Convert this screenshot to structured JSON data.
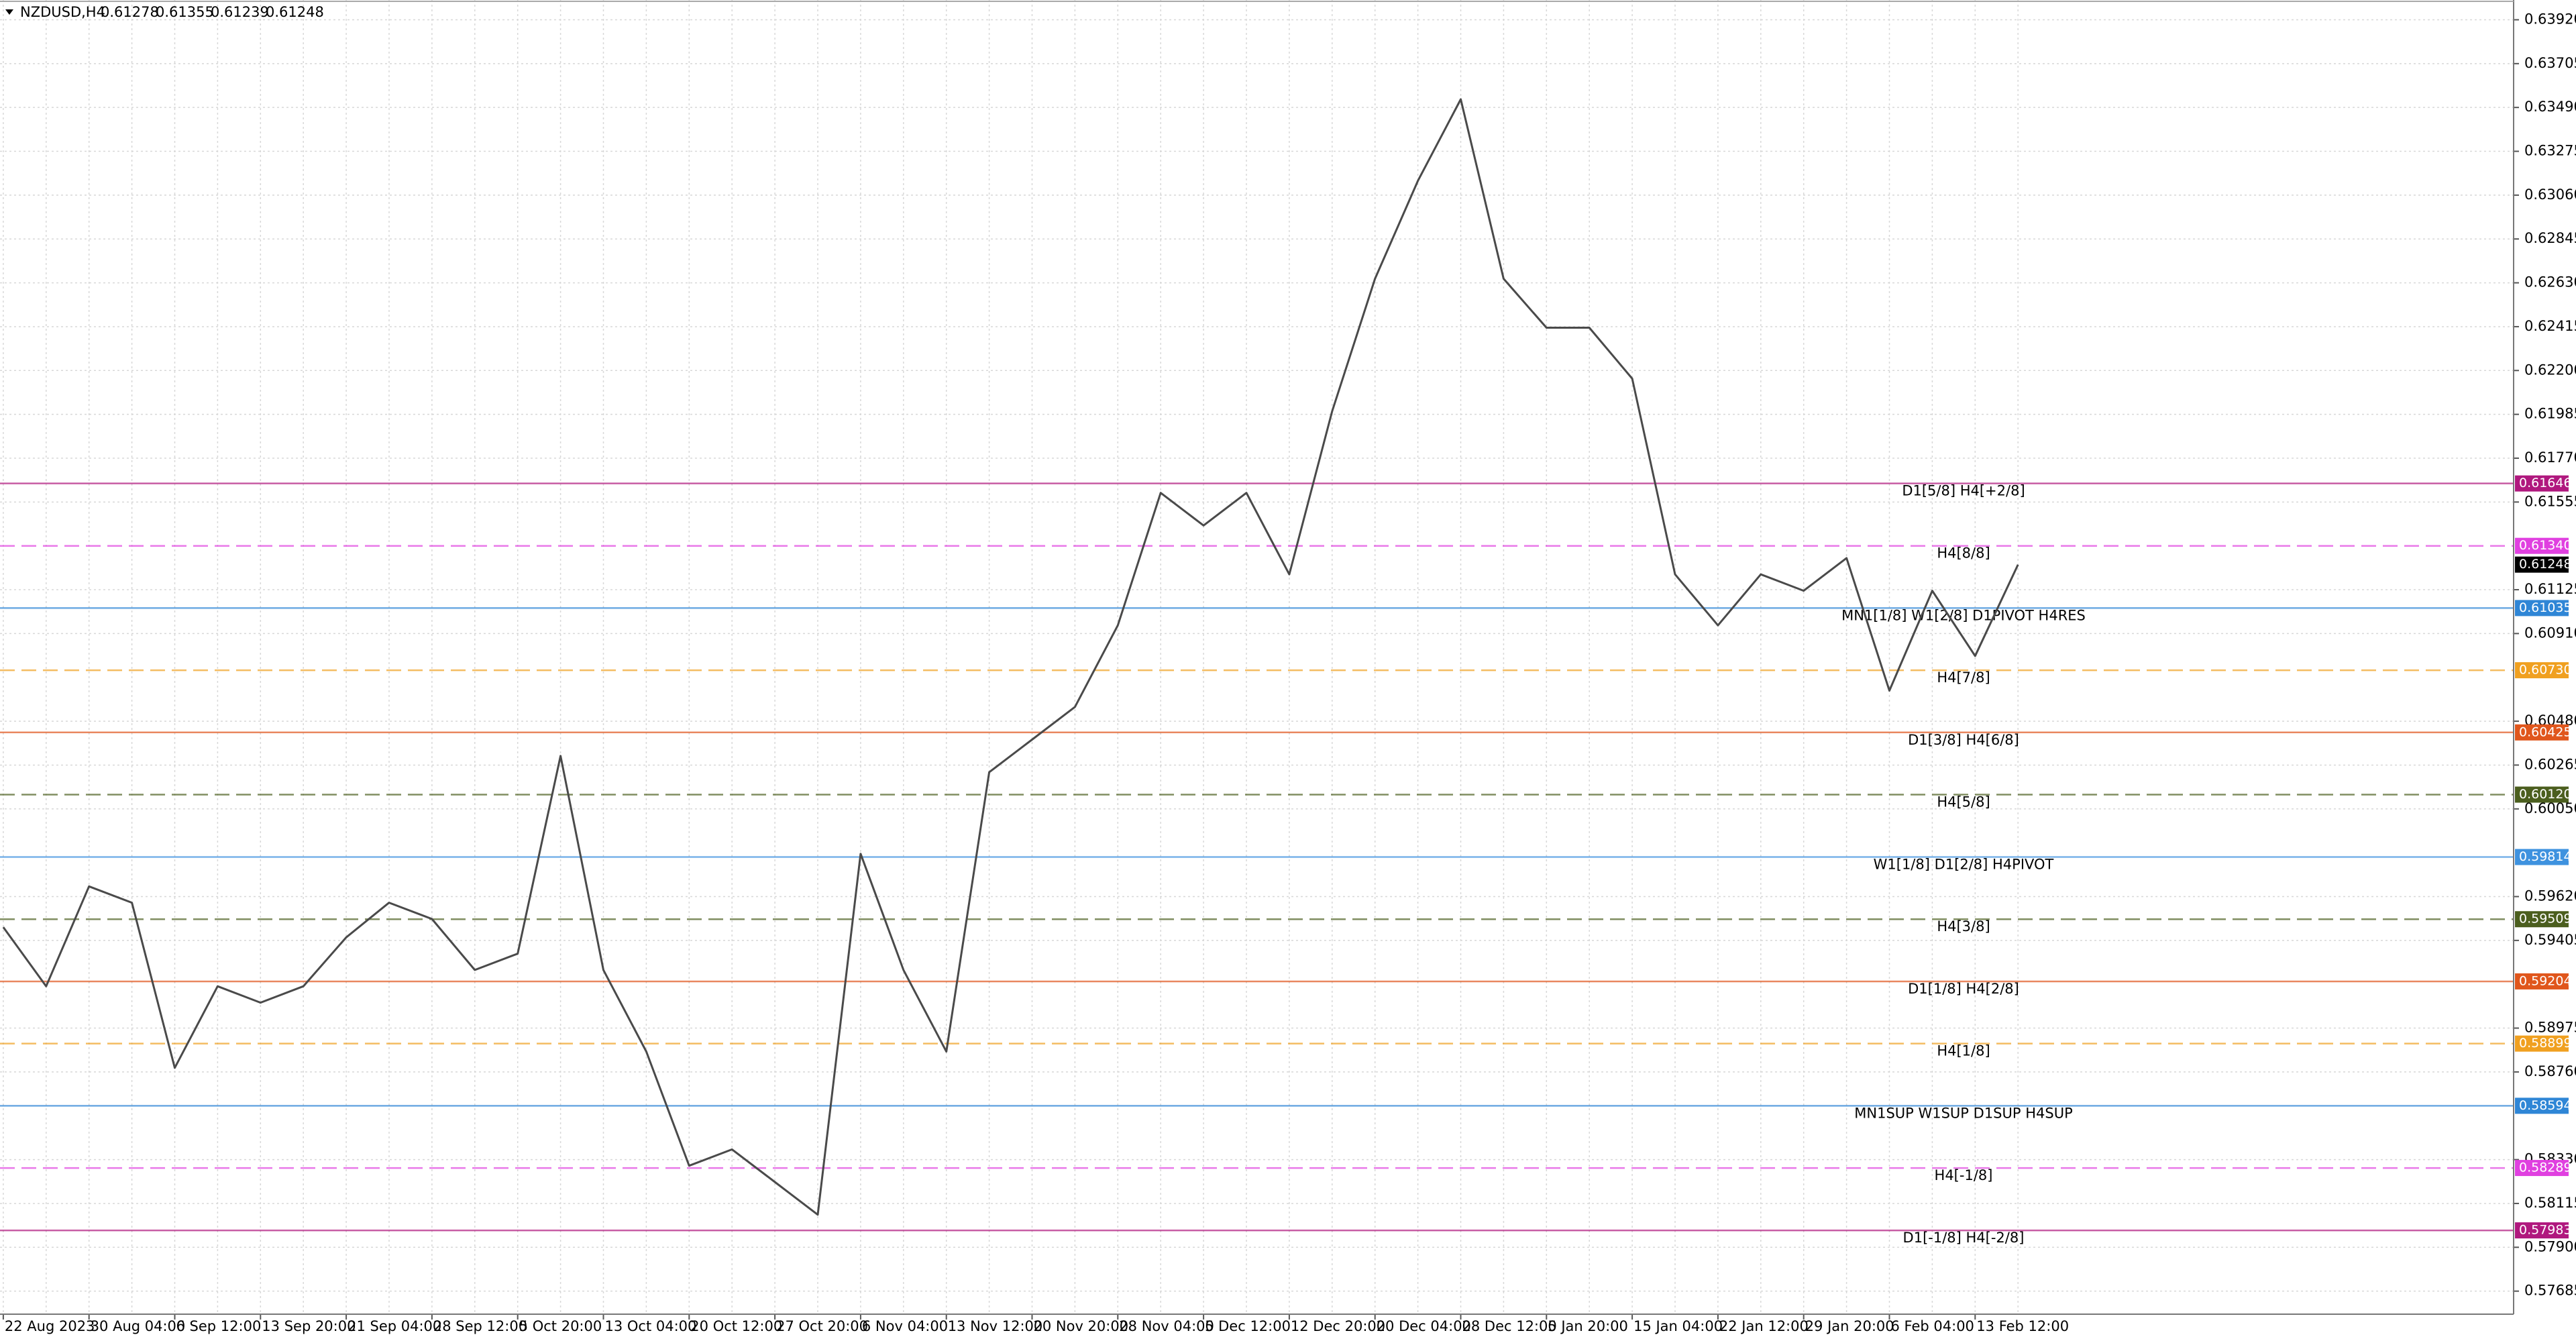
{
  "header": {
    "symbol": "NZDUSD,H4",
    "open": 0.61278,
    "high": 0.61355,
    "low": 0.61239,
    "close": 0.61248
  },
  "chart_data": {
    "type": "line",
    "categories": [
      "22 Aug 2023",
      null,
      "30 Aug 04:00",
      null,
      "6 Sep 12:00",
      null,
      "13 Sep 20:00",
      null,
      "21 Sep 04:00",
      null,
      "28 Sep 12:00",
      null,
      "5 Oct 20:00",
      null,
      "13 Oct 04:00",
      null,
      "20 Oct 12:00",
      null,
      "27 Oct 20:00",
      null,
      "6 Nov 04:00",
      null,
      "13 Nov 12:00",
      null,
      "20 Nov 20:00",
      null,
      "28 Nov 04:00",
      null,
      "5 Dec 12:00",
      null,
      "12 Dec 20:00",
      null,
      "20 Dec 04:00",
      null,
      "28 Dec 12:00",
      null,
      "5 Jan 20:00",
      null,
      "15 Jan 04:00",
      null,
      "22 Jan 12:00",
      null,
      "29 Jan 20:00",
      null,
      "6 Feb 04:00",
      null,
      "13 Feb 12:00",
      null
    ],
    "series": [
      {
        "name": "NZDUSD",
        "color": "#4a4a4a",
        "values": [
          0.5947,
          0.5918,
          0.5967,
          0.5959,
          0.5878,
          0.5918,
          0.591,
          0.5918,
          0.5942,
          0.5959,
          0.5951,
          0.5926,
          0.5934,
          0.6031,
          0.5926,
          0.5886,
          0.583,
          0.5838,
          0.5822,
          0.5806,
          0.5983,
          0.5926,
          0.5886,
          0.6023,
          0.6039,
          0.6055,
          0.6095,
          0.616,
          0.6144,
          0.616,
          0.612,
          0.62,
          0.6265,
          0.6313,
          0.6353,
          0.6265,
          0.6241,
          0.6241,
          0.6216,
          0.612,
          0.6095,
          0.612,
          0.6112,
          0.6128,
          0.6063,
          0.6112,
          0.608,
          0.61248
        ]
      }
    ],
    "ylim": [
      0.57572,
      0.64017
    ],
    "yticks": [
      {
        "value": 0.6392,
        "label": "0.63920"
      },
      0.63705,
      {
        "value": 0.6349,
        "label": "0.63490"
      },
      0.63275,
      {
        "value": 0.6306,
        "label": "0.63060"
      },
      0.62845,
      {
        "value": 0.6263,
        "label": "0.62630"
      },
      0.62415,
      {
        "value": 0.622,
        "label": "0.62200"
      },
      0.61985,
      {
        "value": 0.6177,
        "label": "0.61770"
      },
      0.61555,
      0.61125,
      {
        "value": 0.6091,
        "label": "0.60910"
      },
      {
        "value": 0.6048,
        "label": "0.60480"
      },
      0.60265,
      {
        "value": 0.6005,
        "label": "0.60050"
      },
      {
        "value": 0.5962,
        "label": "0.59620"
      },
      0.59405,
      0.58975,
      {
        "value": 0.5876,
        "label": "0.58760"
      },
      {
        "value": 0.5833,
        "label": "0.58330"
      },
      0.58115,
      {
        "value": 0.579,
        "label": "0.57900"
      },
      0.57685
    ],
    "grid": true,
    "last_price": 0.61248,
    "levels": [
      {
        "value": 0.61646,
        "text": "D1[5/8] H4[+2/8]",
        "color": "#b0187e",
        "dashed": false
      },
      {
        "value": 0.6134,
        "label": "0.61340",
        "text": "H4[8/8]",
        "color": "#e040e0",
        "dashed": true
      },
      {
        "value": 0.61035,
        "text": "MN1[1/8] W1[2/8] D1PIVOT H4RES",
        "color": "#2f86d6",
        "dashed": false
      },
      {
        "value": 0.6073,
        "label": "0.60730",
        "text": "H4[7/8]",
        "color": "#f0a020",
        "dashed": true
      },
      {
        "value": 0.60425,
        "text": "D1[3/8] H4[6/8]",
        "color": "#e0561c",
        "dashed": false
      },
      {
        "value": 0.6012,
        "label": "0.60120",
        "text": "H4[5/8]",
        "color": "#4b5e1e",
        "dashed": true
      },
      {
        "value": 0.59814,
        "text": "W1[1/8] D1[2/8] H4PIVOT",
        "color": "#3e92df",
        "dashed": false
      },
      {
        "value": 0.59509,
        "text": "H4[3/8]",
        "color": "#4b5e1e",
        "dashed": true
      },
      {
        "value": 0.59204,
        "text": "D1[1/8] H4[2/8]",
        "color": "#e0561c",
        "dashed": false
      },
      {
        "value": 0.58899,
        "text": "H4[1/8]",
        "color": "#f0a020",
        "dashed": true
      },
      {
        "value": 0.58594,
        "text": "MN1SUP W1SUP D1SUP H4SUP",
        "color": "#2f86d6",
        "dashed": false
      },
      {
        "value": 0.58289,
        "text": "H4[-1/8]",
        "color": "#e040e0",
        "dashed": true
      },
      {
        "value": 0.57983,
        "text": "D1[-1/8] H4[-2/8]",
        "color": "#b0187e",
        "dashed": false
      }
    ]
  }
}
